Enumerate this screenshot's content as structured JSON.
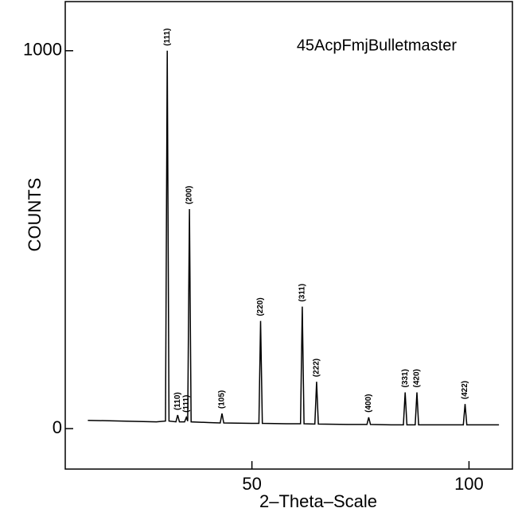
{
  "chart_data": {
    "type": "line",
    "xlabel": "2–Theta–Scale",
    "ylabel": "COUNTS",
    "x": [
      12.2,
      20,
      28,
      30.1,
      30.5,
      30.9,
      32.5,
      32.9,
      33.3,
      34.5,
      34.9,
      35.2,
      35.6,
      36.0,
      40,
      42.7,
      43.1,
      43.5,
      50,
      51.6,
      52.0,
      52.4,
      58,
      61.2,
      61.6,
      62.0,
      64.5,
      64.9,
      65.3,
      72,
      76.5,
      76.9,
      77.3,
      82,
      84.9,
      85.3,
      85.7,
      87.6,
      88.0,
      88.4,
      95,
      98.7,
      99.1,
      99.5,
      106.9
    ],
    "series": [
      {
        "name": "45AcpFmjBulletmaster",
        "color": "#000000",
        "values": [
          22,
          20,
          18,
          20,
          1000,
          20,
          18,
          36,
          18,
          18,
          30,
          20,
          581,
          18,
          16,
          15,
          40,
          15,
          14,
          14,
          285,
          14,
          13,
          13,
          323,
          13,
          12,
          124,
          12,
          11,
          11,
          30,
          11,
          10,
          10,
          96,
          10,
          10,
          96,
          10,
          10,
          10,
          65,
          10,
          10
        ]
      }
    ],
    "peaks": [
      {
        "label": "(111)",
        "x": 30.5,
        "y": 1000
      },
      {
        "label": "(110)",
        "x": 32.9,
        "y": 36
      },
      {
        "label": "(111)",
        "x": 34.9,
        "y": 30
      },
      {
        "label": "(200)",
        "x": 35.6,
        "y": 581
      },
      {
        "label": "(105)",
        "x": 43.1,
        "y": 40
      },
      {
        "label": "(220)",
        "x": 52.0,
        "y": 285
      },
      {
        "label": "(311)",
        "x": 61.6,
        "y": 323
      },
      {
        "label": "(222)",
        "x": 64.9,
        "y": 124
      },
      {
        "label": "(400)",
        "x": 76.9,
        "y": 30
      },
      {
        "label": "(331)",
        "x": 85.3,
        "y": 96
      },
      {
        "label": "(420)",
        "x": 88.0,
        "y": 96
      },
      {
        "label": "(422)",
        "x": 99.1,
        "y": 65
      }
    ],
    "xlim": [
      7,
      110
    ],
    "ylim": [
      -107,
      1130
    ],
    "xticks": [
      50,
      100
    ],
    "yticks": [
      0,
      1000
    ],
    "legend": "top-right"
  }
}
